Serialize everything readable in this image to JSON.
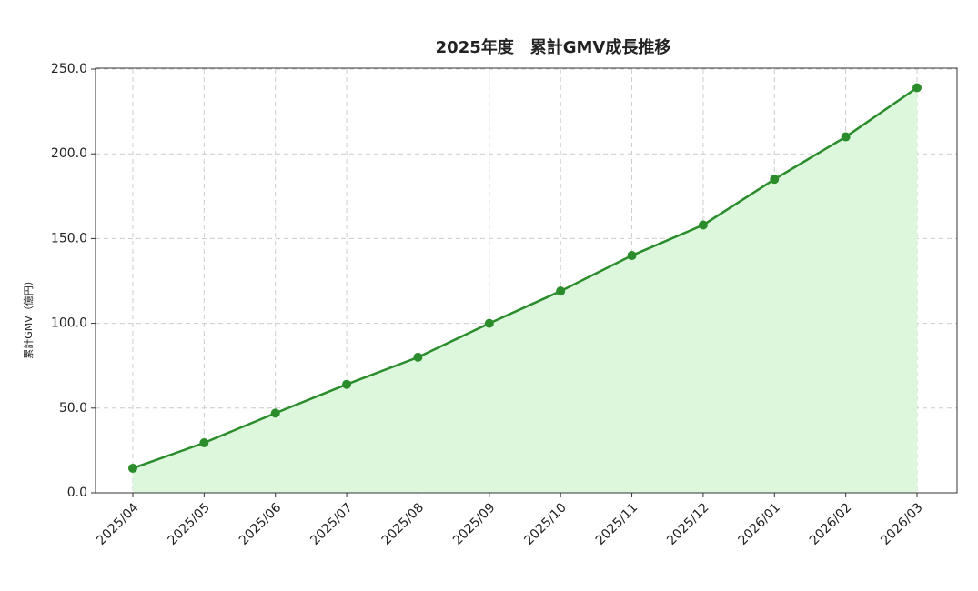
{
  "chart_data": {
    "type": "line",
    "title": "2025年度　累計GMV成長推移",
    "y_label": "累計GMV（億円）",
    "categories": [
      "2025/04",
      "2025/05",
      "2025/06",
      "2025/07",
      "2025/08",
      "2025/09",
      "2025/10",
      "2025/11",
      "2025/12",
      "2026/01",
      "2026/02",
      "2026/03"
    ],
    "series": [
      {
        "name": "累計GMV",
        "color": "#2a8c2a",
        "fill": "#dcf7dc",
        "values": [
          14.5,
          29.5,
          47,
          64,
          80,
          100,
          119,
          140,
          158,
          185,
          210,
          239
        ]
      }
    ],
    "ylim": [
      0,
      250
    ],
    "yticks": [
      {
        "value": 0,
        "label": "0.0"
      },
      {
        "value": 50,
        "label": "50.0"
      },
      {
        "value": 100,
        "label": "100.0"
      },
      {
        "value": 150,
        "label": "150.0"
      },
      {
        "value": 200,
        "label": "200.0"
      },
      {
        "value": 250,
        "label": "250.0"
      }
    ],
    "grid": true
  }
}
